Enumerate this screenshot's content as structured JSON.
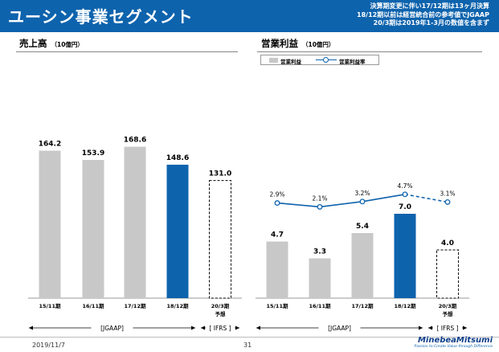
{
  "header": {
    "title": "ユーシン事業セグメント",
    "notes": [
      "決算期変更に伴い17/12期は13ヶ月決算",
      "18/12期以前は経営統合前の参考値でJGAAP",
      "20/3期は2019年1-3月の数値を含まず"
    ]
  },
  "sections": {
    "sales_title": "売上高",
    "sales_unit": "（10億円）",
    "profit_title": "営業利益",
    "profit_unit": "（10億円）"
  },
  "legend": {
    "bar_label": "営業利益",
    "line_label": "営業利益率"
  },
  "colors": {
    "header": "#0e63ad",
    "bar_gray": "#c8c8c8",
    "bar_blue": "#0e63ad",
    "line_blue": "#0e63ad"
  },
  "chart_data": [
    {
      "type": "bar",
      "title": "売上高",
      "unit": "（10億円）",
      "categories": [
        "15/11期",
        "16/11期",
        "17/12期",
        "18/12期",
        "20/3期"
      ],
      "sub_labels": [
        "",
        "",
        "",
        "",
        "予想"
      ],
      "values": [
        164.2,
        153.9,
        168.6,
        148.6,
        131.0
      ],
      "value_labels": [
        "164.2",
        "153.9",
        "168.6",
        "148.6",
        "131.0"
      ],
      "styles": [
        "gray",
        "gray",
        "gray",
        "blue",
        "dashed"
      ],
      "ylim": [
        0,
        230
      ],
      "bracket_left": "[JGAAP]",
      "bracket_right": "[ IFRS ]"
    },
    {
      "type": "bar+line",
      "title": "営業利益",
      "unit": "（10億円）",
      "categories": [
        "15/11期",
        "16/11期",
        "17/12期",
        "18/12期",
        "20/3期"
      ],
      "sub_labels": [
        "",
        "",
        "",
        "",
        "予想"
      ],
      "values": [
        4.7,
        3.3,
        5.4,
        7.0,
        4.0
      ],
      "value_labels": [
        "4.7",
        "3.3",
        "5.4",
        "7.0",
        "4.0"
      ],
      "styles": [
        "gray",
        "gray",
        "gray",
        "blue",
        "dashed"
      ],
      "ylim": [
        0,
        10
      ],
      "line_values": [
        2.9,
        2.1,
        3.2,
        4.7,
        3.1
      ],
      "line_labels": [
        "2.9%",
        "2.1%",
        "3.2%",
        "4.7%",
        "3.1%"
      ],
      "line_forecast_dashed": true,
      "bracket_left": "[JGAAP]",
      "bracket_right": "[ IFRS ]"
    }
  ],
  "footer": {
    "date": "2019/11/7",
    "page": "31",
    "logo": "MinebeaMitsumi",
    "tagline": "Passion to Create Value through Difference"
  }
}
